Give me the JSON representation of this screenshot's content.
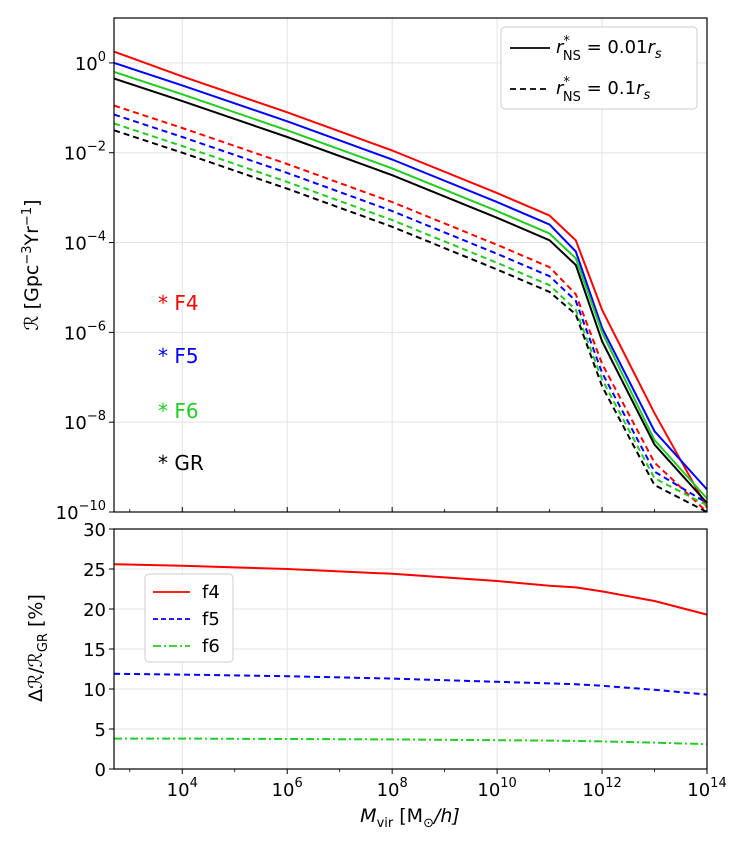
{
  "chart_data": [
    {
      "type": "line",
      "xscale": "log",
      "yscale": "log",
      "xlim": [
        500,
        100000000000000
      ],
      "ylim": [
        1e-10,
        10
      ],
      "ylabel_main": "ℛ [Gpc",
      "ylabel_sup": "−3",
      "ylabel_mid": "Yr",
      "ylabel_sup2": "−1",
      "ylabel_end": "]",
      "ytick_labels": [
        {
          "value": 1,
          "base": "10",
          "exp": "0"
        },
        {
          "value": 0.01,
          "base": "10",
          "exp": "−2"
        },
        {
          "value": 0.0001,
          "base": "10",
          "exp": "−4"
        },
        {
          "value": 1e-06,
          "base": "10",
          "exp": "−6"
        },
        {
          "value": 1e-08,
          "base": "10",
          "exp": "−8"
        },
        {
          "value": 1e-10,
          "base": "10",
          "exp": "−10"
        }
      ],
      "legend": [
        {
          "label_main": "r",
          "label_sup": "*",
          "label_sub": "NS",
          "label_rest": " = 0.01",
          "label_r": "r",
          "label_s": "s",
          "style": "solid"
        },
        {
          "label_main": "r",
          "label_sup": "*",
          "label_sub": "NS",
          "label_rest": " = 0.1",
          "label_r": "r",
          "label_s": "s",
          "style": "dashed"
        }
      ],
      "annotations": [
        {
          "text": "* F4",
          "color": "#ff0000"
        },
        {
          "text": "* F5",
          "color": "#0000ff"
        },
        {
          "text": "* F6",
          "color": "#22cc22"
        },
        {
          "text": "* GR",
          "color": "#000000"
        }
      ],
      "series": [
        {
          "name": "F4 r*=0.01rs",
          "color": "#ff0000",
          "style": "solid",
          "x_log": [
            2.7,
            4,
            6,
            8,
            10,
            11,
            11.5,
            12,
            13,
            14
          ],
          "y_log": [
            0.25,
            -0.3,
            -1.1,
            -1.95,
            -2.9,
            -3.4,
            -3.95,
            -5.5,
            -7.8,
            -9.9
          ]
        },
        {
          "name": "F5 r*=0.01rs",
          "color": "#0000ff",
          "style": "solid",
          "x_log": [
            2.7,
            4,
            6,
            8,
            10,
            11,
            11.5,
            12,
            13,
            14
          ],
          "y_log": [
            0,
            -0.5,
            -1.3,
            -2.15,
            -3.1,
            -3.6,
            -4.2,
            -5.9,
            -8.2,
            -9.5
          ]
        },
        {
          "name": "F6 r*=0.01rs",
          "color": "#22cc22",
          "style": "solid",
          "x_log": [
            2.7,
            4,
            6,
            8,
            10,
            11,
            11.5,
            12,
            13,
            14
          ],
          "y_log": [
            -0.2,
            -0.7,
            -1.5,
            -2.35,
            -3.3,
            -3.8,
            -4.35,
            -6.0,
            -8.4,
            -9.7
          ]
        },
        {
          "name": "GR r*=0.01rs",
          "color": "#000000",
          "style": "solid",
          "x_log": [
            2.7,
            4,
            6,
            8,
            10,
            11,
            11.5,
            12,
            13,
            14
          ],
          "y_log": [
            -0.35,
            -0.85,
            -1.65,
            -2.5,
            -3.45,
            -3.95,
            -4.5,
            -6.2,
            -8.5,
            -9.8
          ]
        },
        {
          "name": "F4 r*=0.1rs",
          "color": "#ff0000",
          "style": "dashed",
          "x_log": [
            2.7,
            4,
            6,
            8,
            10,
            11,
            11.5,
            12,
            13,
            14
          ],
          "y_log": [
            -0.95,
            -1.45,
            -2.25,
            -3.1,
            -4.05,
            -4.55,
            -5.15,
            -6.7,
            -8.9,
            -10.0
          ]
        },
        {
          "name": "F5 r*=0.1rs",
          "color": "#0000ff",
          "style": "dashed",
          "x_log": [
            2.7,
            4,
            6,
            8,
            10,
            11,
            11.5,
            12,
            13,
            14
          ],
          "y_log": [
            -1.15,
            -1.65,
            -2.45,
            -3.3,
            -4.25,
            -4.75,
            -5.3,
            -6.9,
            -9.1,
            -9.8
          ]
        },
        {
          "name": "F6 r*=0.1rs",
          "color": "#22cc22",
          "style": "dashed",
          "x_log": [
            2.7,
            4,
            6,
            8,
            10,
            11,
            11.5,
            12,
            13,
            14
          ],
          "y_log": [
            -1.35,
            -1.85,
            -2.65,
            -3.5,
            -4.45,
            -4.95,
            -5.5,
            -7.05,
            -9.25,
            -9.85
          ]
        },
        {
          "name": "GR r*=0.1rs",
          "color": "#000000",
          "style": "dashed",
          "x_log": [
            2.7,
            4,
            6,
            8,
            10,
            11,
            11.5,
            12,
            13,
            14
          ],
          "y_log": [
            -1.5,
            -2.0,
            -2.8,
            -3.65,
            -4.6,
            -5.1,
            -5.6,
            -7.2,
            -9.4,
            -10.0
          ]
        }
      ]
    },
    {
      "type": "line",
      "xscale": "log",
      "xlim": [
        500,
        100000000000000
      ],
      "ylim": [
        0,
        30
      ],
      "yticks": [
        0,
        5,
        10,
        15,
        20,
        25,
        30
      ],
      "ylabel": "Δℛ/ℛ",
      "ylabel_sub": "GR",
      "ylabel_end": " [%]",
      "xlabel_main": "M",
      "xlabel_sub": "vir",
      "xlabel_end": " [M",
      "xlabel_sub2": "⊙",
      "xlabel_end2": "/h]",
      "xtick_labels": [
        {
          "value": 10000,
          "base": "10",
          "exp": "4"
        },
        {
          "value": 1000000,
          "base": "10",
          "exp": "6"
        },
        {
          "value": 100000000,
          "base": "10",
          "exp": "8"
        },
        {
          "value": 10000000000,
          "base": "10",
          "exp": "10"
        },
        {
          "value": 1000000000000,
          "base": "10",
          "exp": "12"
        },
        {
          "value": 100000000000000,
          "base": "10",
          "exp": "14"
        }
      ],
      "series": [
        {
          "name": "f4",
          "color": "#ff0000",
          "style": "solid",
          "x_log": [
            2.7,
            4,
            6,
            8,
            10,
            11,
            11.5,
            12,
            13,
            14
          ],
          "y": [
            25.6,
            25.4,
            25.0,
            24.4,
            23.5,
            22.9,
            22.7,
            22.2,
            21.0,
            19.3
          ]
        },
        {
          "name": "f5",
          "color": "#0000ff",
          "style": "dashed",
          "x_log": [
            2.7,
            4,
            6,
            8,
            10,
            11,
            11.5,
            12,
            13,
            14
          ],
          "y": [
            11.9,
            11.8,
            11.6,
            11.3,
            10.9,
            10.7,
            10.6,
            10.4,
            9.9,
            9.3
          ]
        },
        {
          "name": "f6",
          "color": "#22cc22",
          "style": "dashdot",
          "x_log": [
            2.7,
            4,
            6,
            8,
            10,
            11,
            11.5,
            12,
            13,
            14
          ],
          "y": [
            3.8,
            3.8,
            3.75,
            3.7,
            3.6,
            3.55,
            3.5,
            3.45,
            3.3,
            3.1
          ]
        }
      ]
    }
  ]
}
